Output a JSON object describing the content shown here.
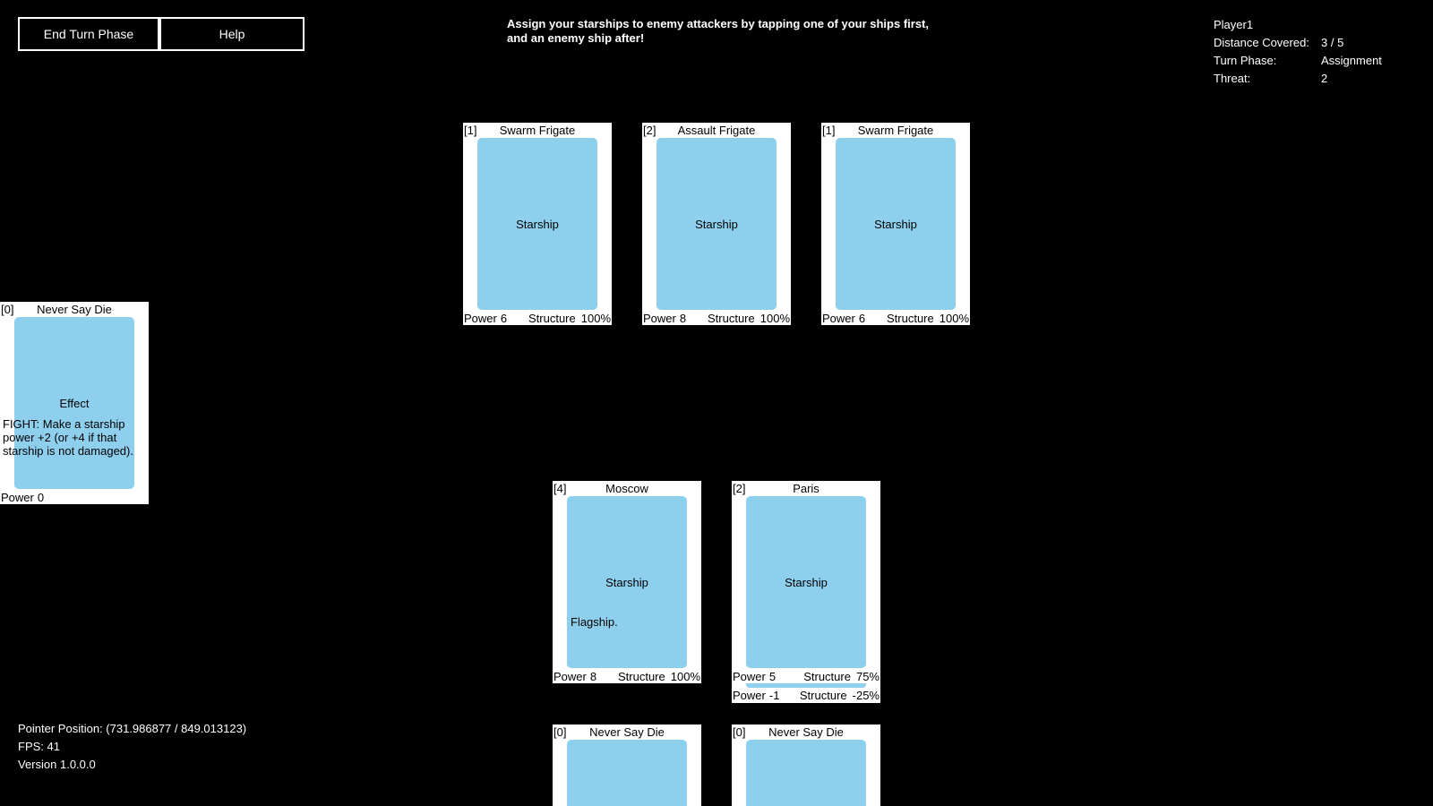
{
  "buttons": {
    "end_turn": "End Turn Phase",
    "help": "Help"
  },
  "instructions": "Assign your starships to enemy attackers by tapping one of your ships first, and an enemy ship after!",
  "status": {
    "player": "Player1",
    "distance_label": "Distance Covered:",
    "distance_value": "3 / 5",
    "phase_label": "Turn Phase:",
    "phase_value": "Assignment",
    "threat_label": "Threat:",
    "threat_value": "2"
  },
  "labels": {
    "power": "Power",
    "structure": "Structure"
  },
  "enemy_cards": [
    {
      "cost": "[1]",
      "name": "Swarm Frigate",
      "type": "Starship",
      "power": "6",
      "structure": "100%"
    },
    {
      "cost": "[2]",
      "name": "Assault Frigate",
      "type": "Starship",
      "power": "8",
      "structure": "100%"
    },
    {
      "cost": "[1]",
      "name": "Swarm Frigate",
      "type": "Starship",
      "power": "6",
      "structure": "100%"
    }
  ],
  "effect_card": {
    "cost": "[0]",
    "name": "Never Say Die",
    "type": "Effect",
    "text": "FIGHT: Make a starship power +2 (or +4 if that starship is not damaged).",
    "power": "0"
  },
  "player_cards": [
    {
      "cost": "[4]",
      "name": "Moscow",
      "type": "Starship",
      "text": "Flagship.",
      "power": "8",
      "structure": "100%"
    },
    {
      "cost": "[2]",
      "name": "Paris",
      "type": "Starship",
      "text": "",
      "power": "5",
      "structure": "75%",
      "attached": {
        "power": "-1",
        "structure": "-25%"
      }
    }
  ],
  "hand_cards": [
    {
      "cost": "[0]",
      "name": "Never Say Die"
    },
    {
      "cost": "[0]",
      "name": "Never Say Die"
    }
  ],
  "debug": {
    "pointer": "Pointer Position: (731.986877 / 849.013123)",
    "fps": "FPS: 41",
    "version": "Version 1.0.0.0"
  }
}
